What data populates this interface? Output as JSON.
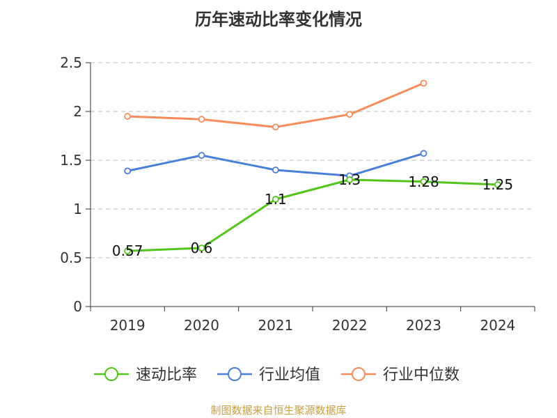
{
  "chart_data": {
    "type": "line",
    "title": "历年速动比率变化情况",
    "categories": [
      "2019",
      "2020",
      "2021",
      "2022",
      "2023",
      "2024"
    ],
    "ylim": [
      0,
      2.5
    ],
    "yticks": [
      "0",
      "0.5",
      "1",
      "1.5",
      "2",
      "2.5"
    ],
    "grid": true,
    "legend_position": "bottom-center",
    "series": [
      {
        "name": "速动比率",
        "color": "#52c41a",
        "values": [
          0.57,
          0.6,
          1.1,
          1.3,
          1.28,
          1.25
        ],
        "labels": [
          "0.57",
          "0.6",
          "1.1",
          "1.3",
          "1.28",
          "1.25"
        ]
      },
      {
        "name": "行业均值",
        "color": "#4a7fd9",
        "values": [
          1.39,
          1.55,
          1.4,
          1.34,
          1.57,
          null
        ]
      },
      {
        "name": "行业中位数",
        "color": "#f78c5a",
        "values": [
          1.95,
          1.92,
          1.84,
          1.97,
          2.29,
          null
        ]
      }
    ]
  },
  "source": "制图数据来自恒生聚源数据库"
}
